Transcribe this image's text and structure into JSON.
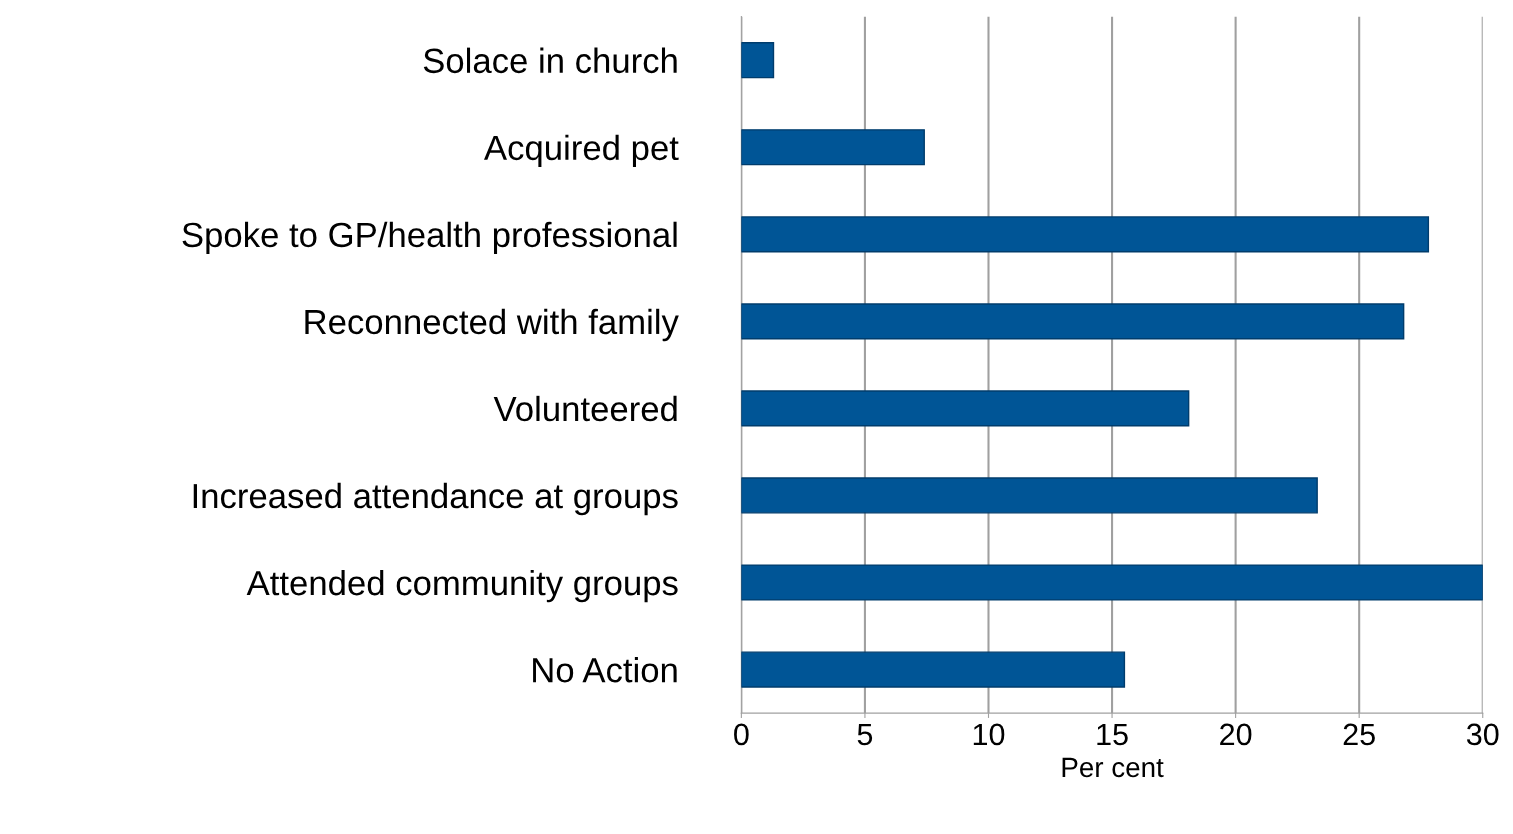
{
  "chart_data": {
    "type": "bar",
    "orientation": "horizontal",
    "xlabel": "Per cent",
    "categories": [
      "Solace in church",
      "Acquired pet",
      "Spoke to GP/health professional",
      "Reconnected with family",
      "Volunteered",
      "Increased attendance at groups",
      "Attended community groups",
      "No Action"
    ],
    "values": [
      1.3,
      7.4,
      27.8,
      26.8,
      18.1,
      23.3,
      30.0,
      15.5
    ],
    "color": "#005596",
    "xlim": [
      0,
      30
    ],
    "xticks": [
      0,
      5,
      10,
      15,
      20,
      25,
      30
    ],
    "grid": "x"
  }
}
